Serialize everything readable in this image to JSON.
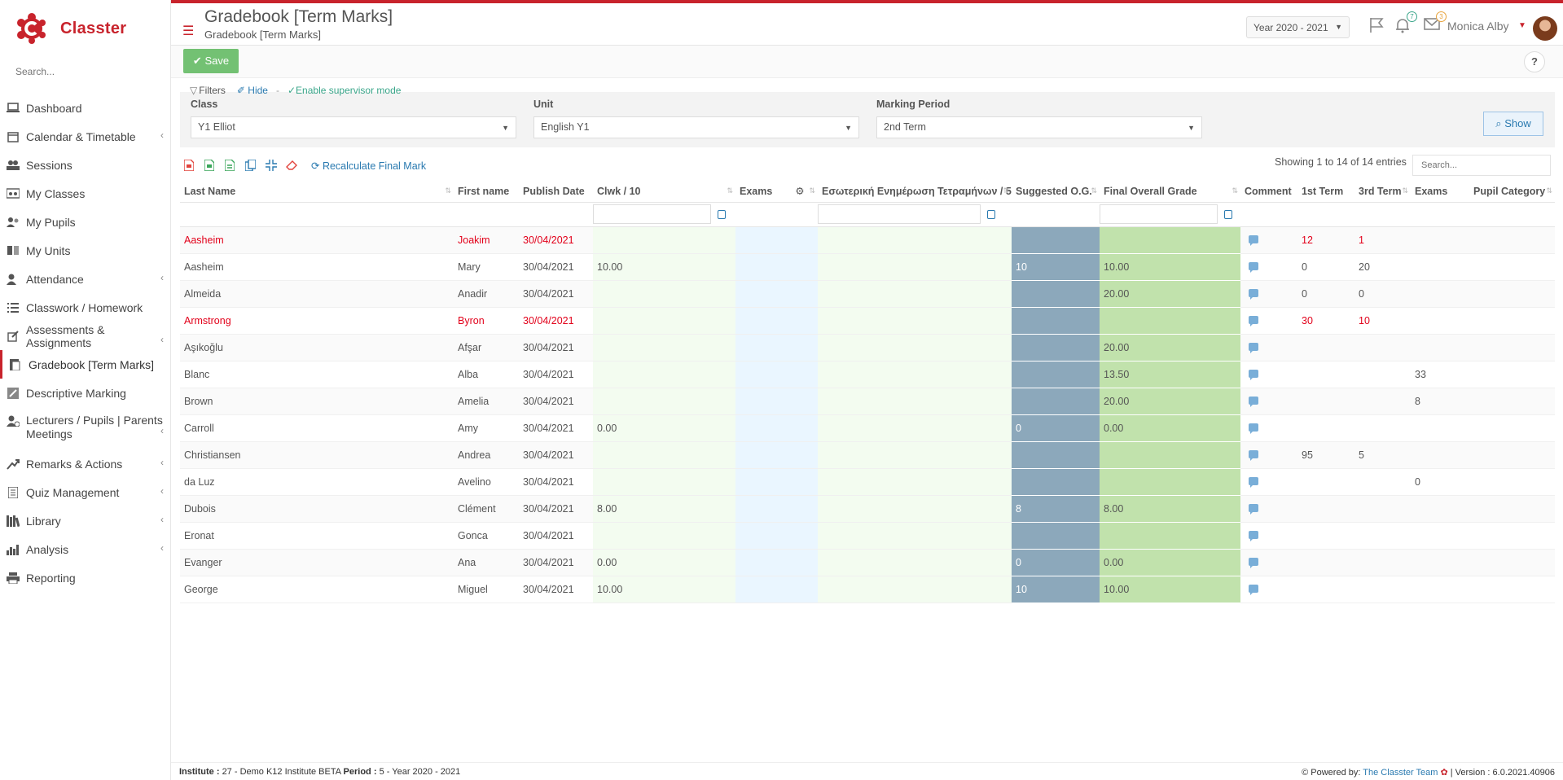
{
  "app": {
    "name": "Classter"
  },
  "sidebar": {
    "search_placeholder": "Search...",
    "items": [
      {
        "label": "Dashboard",
        "icon": "laptop-icon"
      },
      {
        "label": "Calendar & Timetable",
        "icon": "calendar-icon"
      },
      {
        "label": "Sessions",
        "icon": "sessions-icon"
      },
      {
        "label": "My Classes",
        "icon": "classes-icon"
      },
      {
        "label": "My Pupils",
        "icon": "pupils-icon"
      },
      {
        "label": "My Units",
        "icon": "book-icon"
      },
      {
        "label": "Attendance",
        "icon": "attendance-icon"
      },
      {
        "label": "Classwork / Homework",
        "icon": "list-icon"
      },
      {
        "label": "Assessments & Assignments",
        "icon": "edit-icon"
      },
      {
        "label": "Gradebook [Term Marks]",
        "icon": "gradebook-icon"
      },
      {
        "label": "Descriptive Marking",
        "icon": "marking-icon"
      },
      {
        "label": "Lecturers / Pupils | Parents Meetings",
        "icon": "meetings-icon"
      },
      {
        "label": "Remarks & Actions",
        "icon": "remarks-icon"
      },
      {
        "label": "Quiz Management",
        "icon": "quiz-icon"
      },
      {
        "label": "Library",
        "icon": "library-icon"
      },
      {
        "label": "Analysis",
        "icon": "chart-icon"
      },
      {
        "label": "Reporting",
        "icon": "print-icon"
      }
    ]
  },
  "header": {
    "title": "Gradebook [Term Marks]",
    "subtitle": "Gradebook [Term Marks]",
    "year": "Year 2020 - 2021",
    "notifications_count": "7",
    "messages_count": "3",
    "user_name": "Monica Alby"
  },
  "toolbar": {
    "save_label": "Save",
    "help_label": "?"
  },
  "filters": {
    "label": "Filters",
    "hide_label": "Hide",
    "separator": "-",
    "supervisor_label": "Enable supervisor mode",
    "class_label": "Class",
    "class_value": "Y1 Elliot",
    "unit_label": "Unit",
    "unit_value": "English Y1",
    "period_label": "Marking Period",
    "period_value": "2nd Term",
    "show_label": "Show"
  },
  "table_tools": {
    "recalc_label": "Recalculate Final Mark",
    "entries_info": "Showing 1 to 14 of 14 entries",
    "search_placeholder": "Search..."
  },
  "grid": {
    "columns": [
      "Last Name",
      "First name",
      "Publish Date",
      "Clwk / 10",
      "Exams",
      "Εσωτερική Ενημέρωση Τετραμήνων / 5",
      "Suggested O.G.",
      "Final Overall Grade",
      "Comment",
      "1st Term",
      "3rd Term",
      "Exams",
      "Pupil Category"
    ],
    "rows": [
      {
        "last": "Aasheim",
        "first": "Joakim",
        "date": "30/04/2021",
        "clwk": "",
        "exams": "",
        "internal": "",
        "sug": "",
        "fog": "",
        "t1": "12",
        "t3": "1",
        "ex": "",
        "cat": "",
        "red": true
      },
      {
        "last": "Aasheim",
        "first": "Mary",
        "date": "30/04/2021",
        "clwk": "10.00",
        "exams": "",
        "internal": "",
        "sug": "10",
        "fog": "10.00",
        "t1": "0",
        "t3": "20",
        "ex": "",
        "cat": "",
        "red": false
      },
      {
        "last": "Almeida",
        "first": "Anadir",
        "date": "30/04/2021",
        "clwk": "",
        "exams": "",
        "internal": "",
        "sug": "",
        "fog": "20.00",
        "t1": "0",
        "t3": "0",
        "ex": "",
        "cat": "",
        "red": false
      },
      {
        "last": "Armstrong",
        "first": "Byron",
        "date": "30/04/2021",
        "clwk": "",
        "exams": "",
        "internal": "",
        "sug": "",
        "fog": "",
        "t1": "30",
        "t3": "10",
        "ex": "",
        "cat": "",
        "red": true
      },
      {
        "last": "Aşıkoğlu",
        "first": "Afşar",
        "date": "30/04/2021",
        "clwk": "",
        "exams": "",
        "internal": "",
        "sug": "",
        "fog": "20.00",
        "t1": "",
        "t3": "",
        "ex": "",
        "cat": "",
        "red": false
      },
      {
        "last": "Blanc",
        "first": "Alba",
        "date": "30/04/2021",
        "clwk": "",
        "exams": "",
        "internal": "",
        "sug": "",
        "fog": "13.50",
        "t1": "",
        "t3": "",
        "ex": "33",
        "cat": "",
        "red": false
      },
      {
        "last": "Brown",
        "first": "Amelia",
        "date": "30/04/2021",
        "clwk": "",
        "exams": "",
        "internal": "",
        "sug": "",
        "fog": "20.00",
        "t1": "",
        "t3": "",
        "ex": "8",
        "cat": "",
        "red": false
      },
      {
        "last": "Carroll",
        "first": "Amy",
        "date": "30/04/2021",
        "clwk": "0.00",
        "exams": "",
        "internal": "",
        "sug": "0",
        "fog": "0.00",
        "t1": "",
        "t3": "",
        "ex": "",
        "cat": "",
        "red": false
      },
      {
        "last": "Christiansen",
        "first": "Andrea",
        "date": "30/04/2021",
        "clwk": "",
        "exams": "",
        "internal": "",
        "sug": "",
        "fog": "",
        "t1": "95",
        "t3": "5",
        "ex": "",
        "cat": "",
        "red": false
      },
      {
        "last": "da Luz",
        "first": "Avelino",
        "date": "30/04/2021",
        "clwk": "",
        "exams": "",
        "internal": "",
        "sug": "",
        "fog": "",
        "t1": "",
        "t3": "",
        "ex": "0",
        "cat": "",
        "red": false
      },
      {
        "last": "Dubois",
        "first": "Clément",
        "date": "30/04/2021",
        "clwk": "8.00",
        "exams": "",
        "internal": "",
        "sug": "8",
        "fog": "8.00",
        "t1": "",
        "t3": "",
        "ex": "",
        "cat": "",
        "red": false
      },
      {
        "last": "Eronat",
        "first": "Gonca",
        "date": "30/04/2021",
        "clwk": "",
        "exams": "",
        "internal": "",
        "sug": "",
        "fog": "",
        "t1": "",
        "t3": "",
        "ex": "",
        "cat": "",
        "red": false
      },
      {
        "last": "Evanger",
        "first": "Ana",
        "date": "30/04/2021",
        "clwk": "0.00",
        "exams": "",
        "internal": "",
        "sug": "0",
        "fog": "0.00",
        "t1": "",
        "t3": "",
        "ex": "",
        "cat": "",
        "red": false
      },
      {
        "last": "George",
        "first": "Miguel",
        "date": "30/04/2021",
        "clwk": "10.00",
        "exams": "",
        "internal": "",
        "sug": "10",
        "fog": "10.00",
        "t1": "",
        "t3": "",
        "ex": "",
        "cat": "",
        "red": false
      }
    ]
  },
  "footer": {
    "institute_label": "Institute :",
    "institute_value": "27 - Demo K12 Institute BETA",
    "period_label": "Period :",
    "period_value": "5 - Year 2020 - 2021",
    "powered_label": "Powered by:",
    "powered_link": "The Classter Team",
    "version": "| Version : 6.0.2021.40906"
  },
  "colors": {
    "brand": "#c8232c",
    "link": "#2a7ab0",
    "suggested_bg": "#8ca8bb",
    "final_bg": "#c1e2ac",
    "save_bg": "#5cb85c"
  }
}
